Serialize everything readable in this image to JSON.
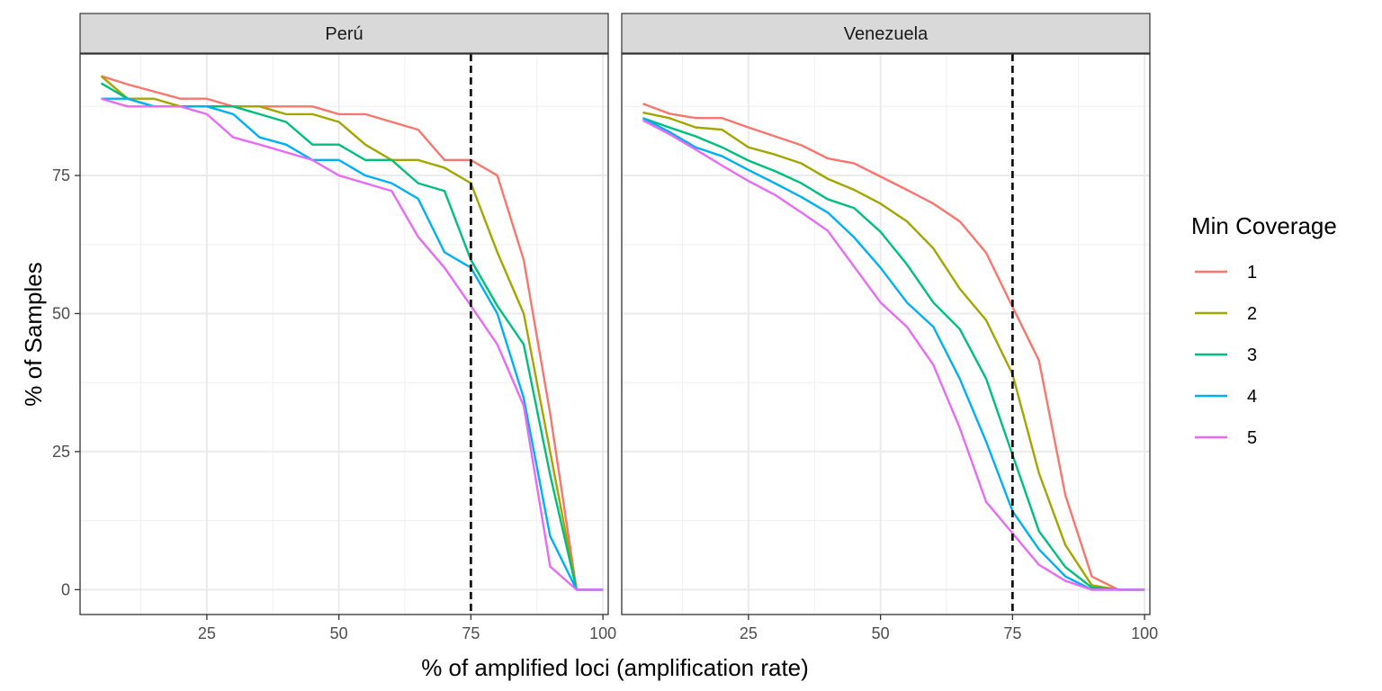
{
  "chart_data": {
    "type": "line",
    "xlabel": "% of amplified loci (amplification rate)",
    "ylabel": "% of Samples",
    "xlim": [
      1,
      101
    ],
    "ylim": [
      -4.5,
      97
    ],
    "x_ticks": [
      25,
      50,
      75,
      100
    ],
    "y_ticks": [
      0,
      25,
      50,
      75
    ],
    "reference_line": {
      "x": 75,
      "style": "dashed",
      "color": "#000000"
    },
    "grid": true,
    "legend": {
      "title": "Min Coverage",
      "position": "right",
      "entries": [
        {
          "label": "1",
          "color": "#F8766D"
        },
        {
          "label": "2",
          "color": "#A3A500"
        },
        {
          "label": "3",
          "color": "#00BF7D"
        },
        {
          "label": "4",
          "color": "#00B0F6"
        },
        {
          "label": "5",
          "color": "#E76BF3"
        }
      ]
    },
    "x": [
      5,
      10,
      15,
      20,
      25,
      30,
      35,
      40,
      45,
      50,
      55,
      60,
      65,
      70,
      75,
      80,
      85,
      90,
      95,
      100
    ],
    "panels": [
      {
        "title": "Perú",
        "series": [
          {
            "name": "1",
            "values": [
              93,
              91.5,
              90.2,
              88.9,
              88.9,
              87.5,
              87.5,
              87.5,
              87.5,
              86.1,
              86.1,
              84.7,
              83.3,
              77.8,
              77.8,
              75,
              59.7,
              31.9,
              0,
              0
            ]
          },
          {
            "name": "2",
            "values": [
              93,
              88.9,
              88.9,
              87.5,
              87.5,
              87.5,
              87.5,
              86.1,
              86.1,
              84.7,
              80.6,
              77.8,
              77.8,
              76.4,
              73.6,
              61.1,
              50,
              25,
              0,
              0
            ]
          },
          {
            "name": "3",
            "values": [
              91.7,
              88.9,
              87.5,
              87.5,
              87.5,
              87.5,
              86.1,
              84.7,
              80.6,
              80.6,
              77.8,
              77.8,
              73.6,
              72.2,
              59.7,
              51.4,
              44.4,
              20.8,
              0,
              0
            ]
          },
          {
            "name": "4",
            "values": [
              88.9,
              88.9,
              87.5,
              87.5,
              87.5,
              86.1,
              81.9,
              80.6,
              77.8,
              77.8,
              75,
              73.6,
              70.8,
              61.1,
              58.3,
              50,
              34.7,
              9.7,
              0,
              0
            ]
          },
          {
            "name": "5",
            "values": [
              88.9,
              87.5,
              87.5,
              87.5,
              86.1,
              81.9,
              80.6,
              79.2,
              77.8,
              75,
              73.6,
              72.2,
              63.9,
              58.3,
              51.4,
              44.4,
              33.3,
              4.2,
              0,
              0
            ]
          }
        ]
      },
      {
        "title": "Venezuela",
        "series": [
          {
            "name": "1",
            "values": [
              88,
              86.2,
              85.4,
              85.4,
              83.7,
              82.1,
              80.5,
              78.1,
              77.2,
              74.8,
              72.4,
              69.9,
              66.7,
              61,
              51.2,
              41.5,
              17.1,
              2.4,
              0,
              0
            ]
          },
          {
            "name": "2",
            "values": [
              86.4,
              85.4,
              83.7,
              83.3,
              80.1,
              78.8,
              77.2,
              74.4,
              72.4,
              69.9,
              66.7,
              61.8,
              54.5,
              48.8,
              39,
              21.1,
              8.1,
              0.8,
              0,
              0
            ]
          },
          {
            "name": "3",
            "values": [
              85.4,
              83.7,
              82.1,
              80.1,
              77.7,
              75.8,
              73.6,
              70.7,
              69.1,
              64.8,
              58.9,
              52,
              47.2,
              38.2,
              24.4,
              10.6,
              4.1,
              0.4,
              0,
              0
            ]
          },
          {
            "name": "4",
            "values": [
              85.4,
              82.9,
              80.1,
              78.5,
              76,
              73.6,
              71.1,
              68.3,
              63.8,
              58.3,
              52,
              47.6,
              38.2,
              26.8,
              14.2,
              7.3,
              2.4,
              0,
              0,
              0
            ]
          },
          {
            "name": "5",
            "values": [
              85,
              82.5,
              79.7,
              76.8,
              74,
              71.5,
              68.3,
              65,
              58.5,
              52,
              47.6,
              40.7,
              29.3,
              15.9,
              10.2,
              4.5,
              1.6,
              0,
              0,
              0
            ]
          }
        ]
      }
    ]
  }
}
